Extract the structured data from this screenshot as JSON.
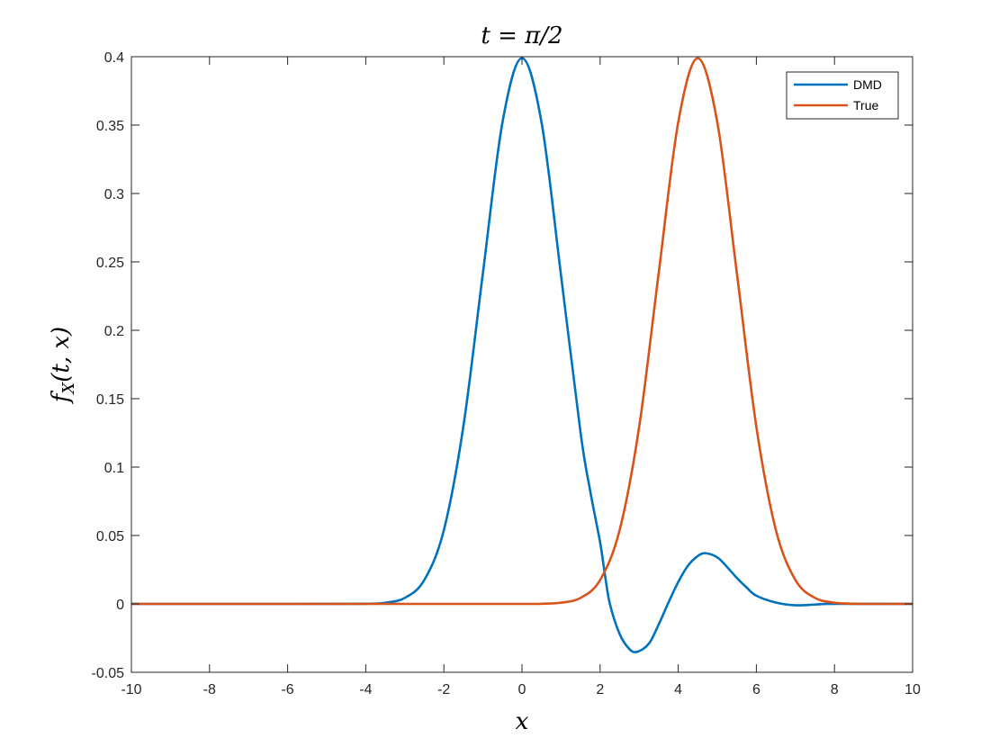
{
  "chart_data": {
    "type": "line",
    "title": "t = π/2",
    "xlabel": "x",
    "ylabel": {
      "main": "f",
      "sub": "X",
      "rest": "(t, x)"
    },
    "xlim": [
      -10,
      10
    ],
    "ylim": [
      -0.05,
      0.4
    ],
    "grid": false,
    "legend_position": "top-right",
    "xticks": [
      -10,
      -8,
      -6,
      -4,
      -2,
      0,
      2,
      4,
      6,
      8,
      10
    ],
    "xtick_labels": [
      "-10",
      "-8",
      "-6",
      "-4",
      "-2",
      "0",
      "2",
      "4",
      "6",
      "8",
      "10"
    ],
    "yticks": [
      -0.05,
      0,
      0.05,
      0.1,
      0.15,
      0.2,
      0.25,
      0.3,
      0.35,
      0.4
    ],
    "ytick_labels": [
      "-0.05",
      "0",
      "0.05",
      "0.1",
      "0.15",
      "0.2",
      "0.25",
      "0.3",
      "0.35",
      "0.4"
    ],
    "series": [
      {
        "name": "DMD",
        "color": "#0072BD",
        "x": [
          -10,
          -6,
          -4,
          -3.5,
          -3,
          -2.5,
          -2,
          -1.5,
          -1,
          -0.5,
          0,
          0.5,
          1,
          1.5,
          1.75,
          2,
          2.12,
          2.25,
          2.5,
          2.75,
          2.95,
          3.25,
          3.5,
          3.75,
          4,
          4.25,
          4.5,
          4.7,
          5,
          5.25,
          5.5,
          5.75,
          6,
          6.5,
          7,
          7.5,
          8,
          10
        ],
        "y": [
          0,
          0,
          0.0001,
          0.0009,
          0.0044,
          0.0175,
          0.054,
          0.13,
          0.242,
          0.352,
          0.399,
          0.352,
          0.24,
          0.125,
          0.082,
          0.045,
          0.022,
          0.0,
          -0.022,
          -0.033,
          -0.035,
          -0.029,
          -0.015,
          0.001,
          0.016,
          0.028,
          0.035,
          0.037,
          0.034,
          0.027,
          0.019,
          0.012,
          0.006,
          0.001,
          -0.001,
          -0.0005,
          0,
          0
        ]
      },
      {
        "name": "True",
        "color": "#D95319",
        "x": [
          -10,
          -4,
          0,
          0.5,
          1,
          1.5,
          2,
          2.5,
          3,
          3.5,
          4,
          4.5,
          5,
          5.5,
          6,
          6.5,
          7,
          7.5,
          8,
          8.5,
          9,
          10
        ],
        "y": [
          0,
          0,
          0,
          0.0001,
          0.0009,
          0.0044,
          0.0175,
          0.054,
          0.1295,
          0.242,
          0.3521,
          0.3989,
          0.3521,
          0.242,
          0.1295,
          0.054,
          0.0175,
          0.0044,
          0.0009,
          0.0001,
          0,
          0
        ]
      }
    ]
  }
}
